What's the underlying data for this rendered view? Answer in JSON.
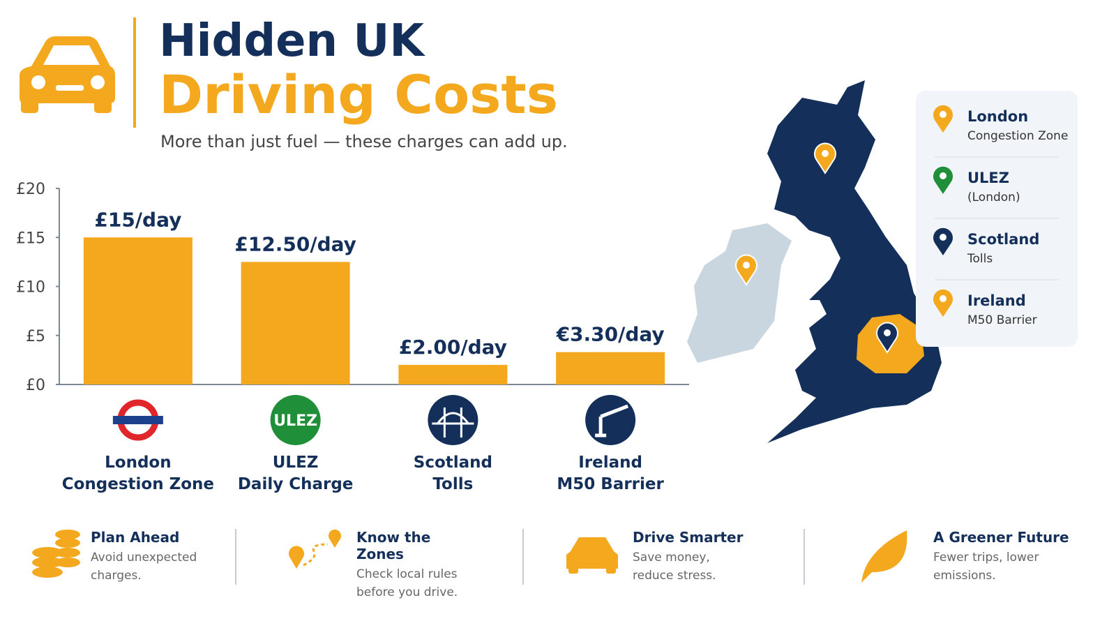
{
  "header": {
    "title_line1": "Hidden UK",
    "title_line2": "Driving Costs",
    "subtitle": "More than just fuel — these charges can add up."
  },
  "chart_data": {
    "type": "bar",
    "categories": [
      "London Congestion Zone",
      "ULEZ Daily Charge",
      "Scotland Tolls",
      "Ireland M50 Barrier"
    ],
    "values": [
      15,
      12.5,
      2,
      3.3
    ],
    "value_labels": [
      "£15/day",
      "£12.50/day",
      "£2.00/day",
      "€3.30/day"
    ],
    "color": "#f4a81d",
    "ylim": [
      0,
      20
    ],
    "yticks": [
      {
        "value": 0,
        "label": "£0"
      },
      {
        "value": 5,
        "label": "£5"
      },
      {
        "value": 10,
        "label": "£10"
      },
      {
        "value": 15,
        "label": "£15"
      },
      {
        "value": 20,
        "label": "£20"
      }
    ],
    "grid": false
  },
  "badges": {
    "ulez": "ULEZ"
  },
  "map_legend": [
    {
      "title": "London",
      "subtitle": "Congestion Zone",
      "color": "#f4a81d"
    },
    {
      "title": "ULEZ",
      "subtitle": "(London)",
      "color": "#1f8f3a"
    },
    {
      "title": "Scotland",
      "subtitle": "Tolls",
      "color": "#14305a"
    },
    {
      "title": "Ireland",
      "subtitle": "M50 Barrier",
      "color": "#f4a81d"
    }
  ],
  "tips": [
    {
      "title": "Plan Ahead",
      "text": "Avoid unexpected charges."
    },
    {
      "title": "Know the Zones",
      "text": "Check local rules before you drive."
    },
    {
      "title": "Drive Smarter",
      "text": "Save money, reduce stress."
    },
    {
      "title": "A Greener Future",
      "text": "Fewer trips, lower emissions."
    }
  ]
}
